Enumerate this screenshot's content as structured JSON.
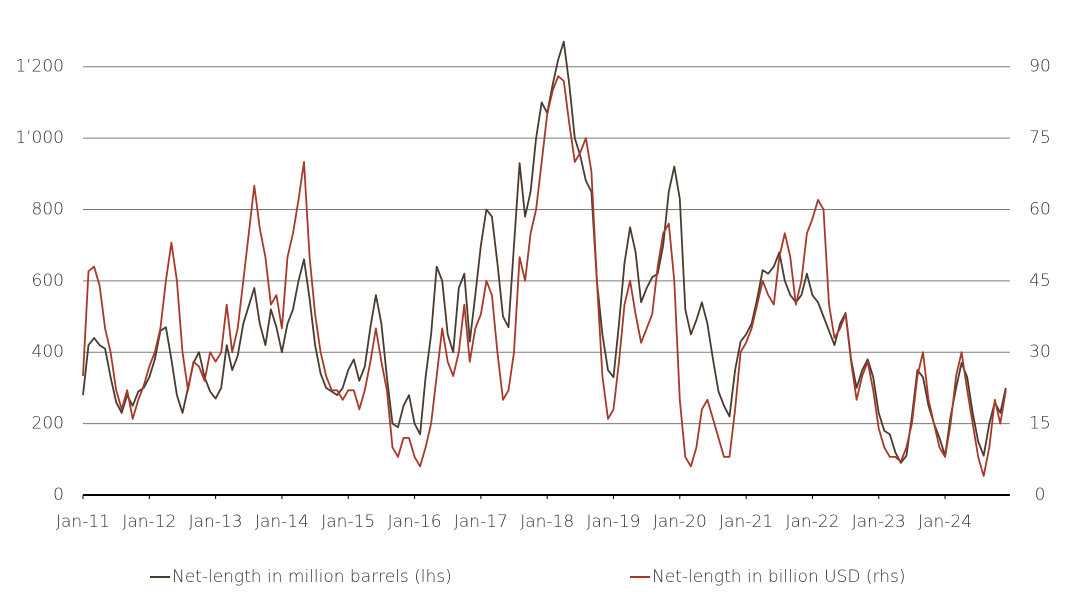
{
  "chart_data": {
    "type": "line",
    "x": [
      "2011-01",
      "2011-02",
      "2011-03",
      "2011-04",
      "2011-05",
      "2011-06",
      "2011-07",
      "2011-08",
      "2011-09",
      "2011-10",
      "2011-11",
      "2011-12",
      "2012-01",
      "2012-02",
      "2012-03",
      "2012-04",
      "2012-05",
      "2012-06",
      "2012-07",
      "2012-08",
      "2012-09",
      "2012-10",
      "2012-11",
      "2012-12",
      "2013-01",
      "2013-02",
      "2013-03",
      "2013-04",
      "2013-05",
      "2013-06",
      "2013-07",
      "2013-08",
      "2013-09",
      "2013-10",
      "2013-11",
      "2013-12",
      "2014-01",
      "2014-02",
      "2014-03",
      "2014-04",
      "2014-05",
      "2014-06",
      "2014-07",
      "2014-08",
      "2014-09",
      "2014-10",
      "2014-11",
      "2014-12",
      "2015-01",
      "2015-02",
      "2015-03",
      "2015-04",
      "2015-05",
      "2015-06",
      "2015-07",
      "2015-08",
      "2015-09",
      "2015-10",
      "2015-11",
      "2015-12",
      "2016-01",
      "2016-02",
      "2016-03",
      "2016-04",
      "2016-05",
      "2016-06",
      "2016-07",
      "2016-08",
      "2016-09",
      "2016-10",
      "2016-11",
      "2016-12",
      "2017-01",
      "2017-02",
      "2017-03",
      "2017-04",
      "2017-05",
      "2017-06",
      "2017-07",
      "2017-08",
      "2017-09",
      "2017-10",
      "2017-11",
      "2017-12",
      "2018-01",
      "2018-02",
      "2018-03",
      "2018-04",
      "2018-05",
      "2018-06",
      "2018-07",
      "2018-08",
      "2018-09",
      "2018-10",
      "2018-11",
      "2018-12",
      "2019-01",
      "2019-02",
      "2019-03",
      "2019-04",
      "2019-05",
      "2019-06",
      "2019-07",
      "2019-08",
      "2019-09",
      "2019-10",
      "2019-11",
      "2019-12",
      "2020-01",
      "2020-02",
      "2020-03",
      "2020-04",
      "2020-05",
      "2020-06",
      "2020-07",
      "2020-08",
      "2020-09",
      "2020-10",
      "2020-11",
      "2020-12",
      "2021-01",
      "2021-02",
      "2021-03",
      "2021-04",
      "2021-05",
      "2021-06",
      "2021-07",
      "2021-08",
      "2021-09",
      "2021-10",
      "2021-11",
      "2021-12",
      "2022-01",
      "2022-02",
      "2022-03",
      "2022-04",
      "2022-05",
      "2022-06",
      "2022-07",
      "2022-08",
      "2022-09",
      "2022-10",
      "2022-11",
      "2022-12",
      "2023-01",
      "2023-02",
      "2023-03",
      "2023-04",
      "2023-05",
      "2023-06",
      "2023-07",
      "2023-08",
      "2023-09",
      "2023-10",
      "2023-11",
      "2023-12",
      "2024-01",
      "2024-02",
      "2024-03",
      "2024-04",
      "2024-05",
      "2024-06",
      "2024-07",
      "2024-08",
      "2024-09",
      "2024-10",
      "2024-11",
      "2024-12"
    ],
    "series": [
      {
        "name": "Net-length in million barrels (lhs)",
        "color": "#4a3b2f",
        "axis": "y",
        "values": [
          280,
          420,
          440,
          420,
          410,
          330,
          260,
          230,
          280,
          250,
          290,
          300,
          330,
          380,
          460,
          470,
          380,
          280,
          230,
          300,
          370,
          400,
          330,
          290,
          270,
          300,
          420,
          350,
          390,
          480,
          530,
          580,
          480,
          420,
          520,
          470,
          400,
          480,
          520,
          600,
          660,
          550,
          420,
          340,
          300,
          290,
          280,
          300,
          350,
          380,
          320,
          360,
          470,
          560,
          480,
          330,
          200,
          190,
          250,
          280,
          200,
          170,
          330,
          450,
          640,
          600,
          450,
          400,
          580,
          620,
          430,
          560,
          700,
          800,
          780,
          650,
          500,
          470,
          700,
          930,
          780,
          850,
          1000,
          1100,
          1070,
          1150,
          1220,
          1270,
          1150,
          1000,
          950,
          880,
          850,
          600,
          450,
          350,
          330,
          480,
          650,
          750,
          680,
          540,
          580,
          610,
          620,
          700,
          850,
          920,
          830,
          520,
          450,
          490,
          540,
          480,
          380,
          290,
          250,
          220,
          350,
          430,
          450,
          480,
          550,
          630,
          620,
          640,
          680,
          600,
          560,
          540,
          560,
          620,
          560,
          540,
          500,
          460,
          420,
          480,
          510,
          380,
          300,
          350,
          380,
          330,
          230,
          180,
          170,
          120,
          90,
          110,
          220,
          350,
          330,
          250,
          200,
          160,
          110,
          220,
          300,
          370,
          330,
          230,
          150,
          110,
          200,
          260,
          230,
          300
        ]
      },
      {
        "name": "Net-length in billion USD (rhs)",
        "color": "#a8392a",
        "axis": "y2",
        "values": [
          25,
          47,
          48,
          44,
          35,
          30,
          22,
          18,
          22,
          16,
          20,
          23,
          27,
          30,
          35,
          45,
          53,
          45,
          30,
          22,
          28,
          27,
          24,
          30,
          28,
          30,
          40,
          30,
          35,
          45,
          55,
          65,
          56,
          50,
          40,
          42,
          35,
          50,
          55,
          62,
          70,
          50,
          38,
          30,
          25,
          22,
          22,
          20,
          22,
          22,
          18,
          22,
          28,
          35,
          28,
          22,
          10,
          8,
          12,
          12,
          8,
          6,
          10,
          15,
          25,
          35,
          28,
          25,
          30,
          40,
          28,
          35,
          38,
          45,
          42,
          30,
          20,
          22,
          30,
          50,
          45,
          55,
          60,
          70,
          80,
          85,
          88,
          87,
          78,
          70,
          72,
          75,
          68,
          45,
          25,
          16,
          18,
          28,
          40,
          45,
          38,
          32,
          35,
          38,
          48,
          55,
          57,
          45,
          20,
          8,
          6,
          10,
          18,
          20,
          16,
          12,
          8,
          8,
          18,
          30,
          32,
          35,
          40,
          45,
          42,
          40,
          50,
          55,
          50,
          40,
          45,
          55,
          58,
          62,
          60,
          40,
          33,
          35,
          38,
          28,
          20,
          25,
          28,
          22,
          14,
          10,
          8,
          8,
          7,
          10,
          15,
          25,
          30,
          20,
          15,
          10,
          8,
          15,
          25,
          30,
          22,
          15,
          8,
          4,
          10,
          20,
          15,
          22
        ]
      }
    ],
    "xlim": [
      "2011-01",
      "2024-12"
    ],
    "xticks": [
      {
        "value": "2011-01",
        "label": "Jan-11"
      },
      {
        "value": "2012-01",
        "label": "Jan-12"
      },
      {
        "value": "2013-01",
        "label": "Jan-13"
      },
      {
        "value": "2014-01",
        "label": "Jan-14"
      },
      {
        "value": "2015-01",
        "label": "Jan-15"
      },
      {
        "value": "2016-01",
        "label": "Jan-16"
      },
      {
        "value": "2017-01",
        "label": "Jan-17"
      },
      {
        "value": "2018-01",
        "label": "Jan-18"
      },
      {
        "value": "2019-01",
        "label": "Jan-19"
      },
      {
        "value": "2020-01",
        "label": "Jan-20"
      },
      {
        "value": "2021-01",
        "label": "Jan-21"
      },
      {
        "value": "2022-01",
        "label": "Jan-22"
      },
      {
        "value": "2023-01",
        "label": "Jan-23"
      },
      {
        "value": "2024-01",
        "label": "Jan-24"
      }
    ],
    "ylim": [
      0,
      1300
    ],
    "yticks": [
      0,
      200,
      400,
      600,
      800,
      {
        "value": 1000,
        "label": "1’000"
      },
      {
        "value": 1200,
        "label": "1’200"
      }
    ],
    "y2lim": [
      0,
      97.5
    ],
    "y2ticks": [
      0,
      15,
      30,
      45,
      60,
      75,
      90
    ],
    "grid": true,
    "legend": "bottom"
  }
}
